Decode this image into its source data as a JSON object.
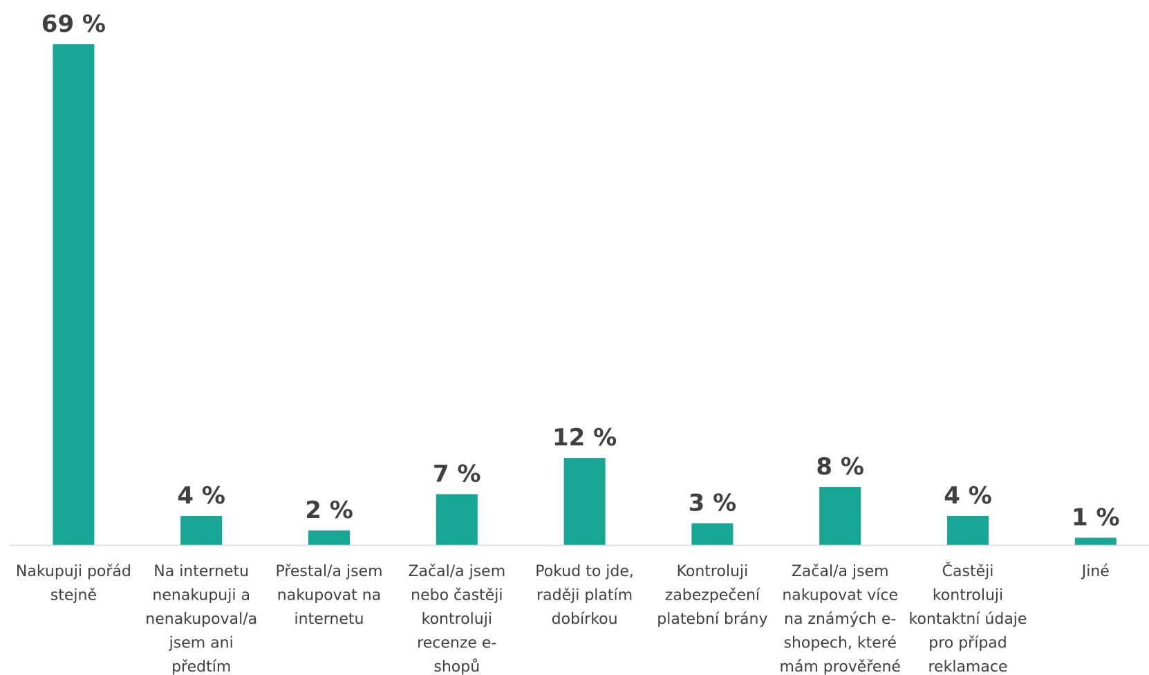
{
  "chart_data": {
    "type": "bar",
    "categories": [
      [
        "Nakupuji pořád",
        "stejně"
      ],
      [
        "Na internetu",
        "nenakupuji a",
        "nenakupoval/a",
        "jsem ani",
        "předtím"
      ],
      [
        "Přestal/a jsem",
        "nakupovat na",
        "internetu"
      ],
      [
        "Začal/a jsem",
        "nebo častěji",
        "kontroluji",
        "recenze e-",
        "shopů"
      ],
      [
        "Pokud to jde,",
        "raději platím",
        "dobírkou"
      ],
      [
        "Kontroluji",
        "zabezpečení",
        "platební brány"
      ],
      [
        "Začal/a jsem",
        "nakupovat více",
        "na známých e-",
        "shopech, které",
        "mám prověřené"
      ],
      [
        "Častěji",
        "kontroluji",
        "kontaktní údaje",
        "pro případ",
        "reklamace"
      ],
      [
        "Jiné"
      ]
    ],
    "values": [
      69,
      4,
      2,
      7,
      12,
      3,
      8,
      4,
      1
    ],
    "value_labels": [
      "69 %",
      "4 %",
      "2 %",
      "7 %",
      "12 %",
      "3 %",
      "8 %",
      "4 %",
      "1 %"
    ],
    "ylim": [
      0,
      69
    ],
    "grid": false,
    "colors": {
      "bar": "#17a794",
      "axis": "#d9d9d9",
      "text": "#404040"
    }
  }
}
